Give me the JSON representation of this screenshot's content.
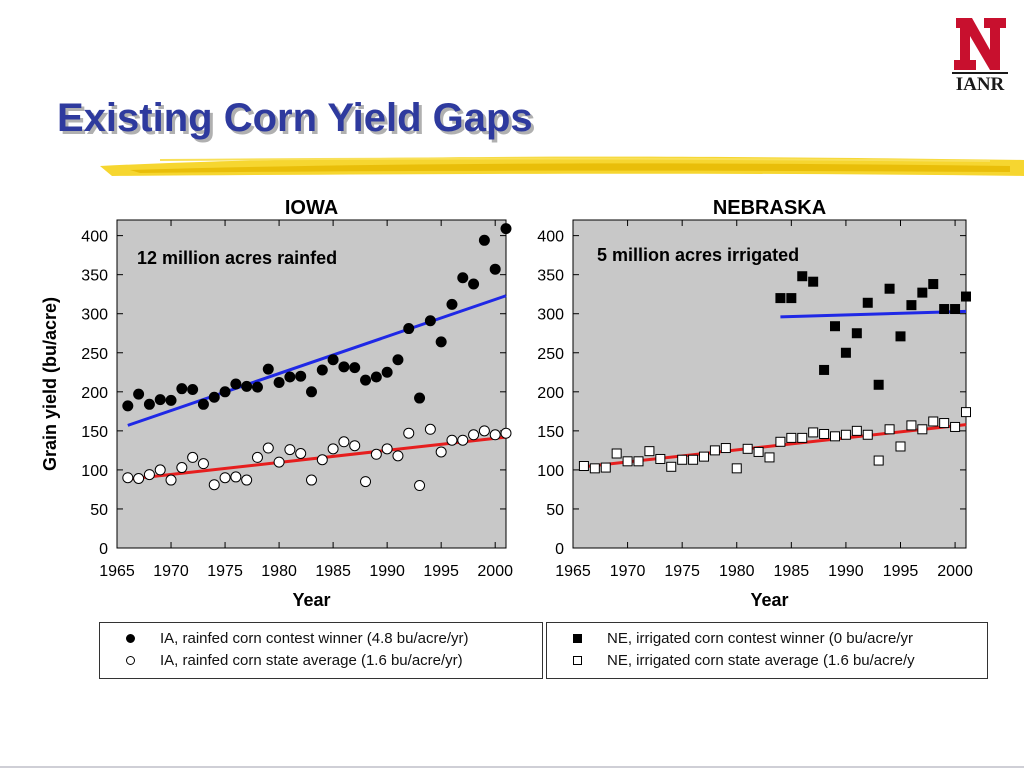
{
  "slide": {
    "title": "Existing Corn Yield Gaps",
    "logo_text": "IANR",
    "brand_color": "#c8102e",
    "title_color": "#2e3a9e",
    "swoosh_color": "#f2c800"
  },
  "chart_data": [
    {
      "type": "scatter",
      "title": "IOWA",
      "annotation": "12 million acres rainfed",
      "xlabel": "Year",
      "ylabel": "Grain yield (bu/acre)",
      "xlim": [
        1965,
        2001
      ],
      "ylim": [
        0,
        420
      ],
      "xticks": [
        1965,
        1970,
        1975,
        1980,
        1985,
        1990,
        1995,
        2000
      ],
      "yticks": [
        0,
        50,
        100,
        150,
        200,
        250,
        300,
        350,
        400
      ],
      "grid": false,
      "background": "#c8c8c8",
      "series": [
        {
          "name": "IA, rainfed corn contest winner (4.8 bu/acre/yr)",
          "marker": "filled-circle",
          "x": [
            1966,
            1967,
            1968,
            1969,
            1970,
            1971,
            1972,
            1973,
            1974,
            1975,
            1976,
            1977,
            1978,
            1979,
            1980,
            1981,
            1982,
            1983,
            1984,
            1985,
            1986,
            1987,
            1988,
            1989,
            1990,
            1991,
            1992,
            1993,
            1994,
            1995,
            1996,
            1997,
            1998,
            1999,
            2000,
            2001
          ],
          "y": [
            182,
            197,
            184,
            190,
            189,
            204,
            203,
            184,
            193,
            200,
            210,
            207,
            206,
            229,
            212,
            219,
            220,
            200,
            228,
            241,
            232,
            231,
            215,
            219,
            225,
            241,
            281,
            192,
            291,
            264,
            312,
            346,
            338,
            394,
            357,
            409
          ],
          "trend": {
            "color": "#1f28e6",
            "from": [
              1966,
              157
            ],
            "to": [
              2001,
              323
            ]
          }
        },
        {
          "name": "IA, rainfed corn state average (1.6 bu/acre/yr)",
          "marker": "open-circle",
          "x": [
            1966,
            1967,
            1968,
            1969,
            1970,
            1971,
            1972,
            1973,
            1974,
            1975,
            1976,
            1977,
            1978,
            1979,
            1980,
            1981,
            1982,
            1983,
            1984,
            1985,
            1986,
            1987,
            1988,
            1989,
            1990,
            1991,
            1992,
            1993,
            1994,
            1995,
            1996,
            1997,
            1998,
            1999,
            2000,
            2001
          ],
          "y": [
            90,
            89,
            94,
            100,
            87,
            103,
            116,
            108,
            81,
            90,
            91,
            87,
            116,
            128,
            110,
            126,
            121,
            87,
            113,
            127,
            136,
            131,
            85,
            120,
            127,
            118,
            147,
            80,
            152,
            123,
            138,
            138,
            145,
            150,
            145,
            147
          ],
          "trend": {
            "color": "#e61e1e",
            "from": [
              1966,
              88
            ],
            "to": [
              2001,
              142
            ]
          }
        }
      ]
    },
    {
      "type": "scatter",
      "title": "NEBRASKA",
      "annotation": "5 million acres irrigated",
      "xlabel": "Year",
      "ylabel": "",
      "xlim": [
        1965,
        2001
      ],
      "ylim": [
        0,
        420
      ],
      "xticks": [
        1965,
        1970,
        1975,
        1980,
        1985,
        1990,
        1995,
        2000
      ],
      "yticks": [
        0,
        50,
        100,
        150,
        200,
        250,
        300,
        350,
        400
      ],
      "grid": false,
      "background": "#c8c8c8",
      "series": [
        {
          "name": "NE, irrigated corn contest winner (0 bu/acre/yr",
          "marker": "filled-square",
          "x": [
            1984,
            1985,
            1986,
            1987,
            1988,
            1989,
            1990,
            1991,
            1992,
            1993,
            1994,
            1995,
            1996,
            1997,
            1998,
            1999,
            2000,
            2001
          ],
          "y": [
            320,
            320,
            348,
            341,
            228,
            284,
            250,
            275,
            314,
            209,
            332,
            271,
            311,
            327,
            338,
            306,
            306,
            322
          ],
          "trend": {
            "color": "#1f28e6",
            "from": [
              1984,
              296
            ],
            "to": [
              2001,
              303
            ]
          }
        },
        {
          "name": "NE, irrigated corn state average (1.6 bu/acre/y",
          "marker": "open-square",
          "x": [
            1966,
            1967,
            1968,
            1969,
            1970,
            1971,
            1972,
            1973,
            1974,
            1975,
            1976,
            1977,
            1978,
            1979,
            1980,
            1981,
            1982,
            1983,
            1984,
            1985,
            1986,
            1987,
            1988,
            1989,
            1990,
            1991,
            1992,
            1993,
            1994,
            1995,
            1996,
            1997,
            1998,
            1999,
            2000,
            2001
          ],
          "y": [
            105,
            102,
            103,
            121,
            111,
            111,
            124,
            114,
            104,
            113,
            113,
            117,
            125,
            128,
            102,
            127,
            123,
            116,
            136,
            141,
            141,
            148,
            146,
            143,
            145,
            150,
            145,
            112,
            152,
            130,
            157,
            152,
            162,
            160,
            155,
            174
          ],
          "trend": {
            "color": "#e61e1e",
            "from": [
              1966,
              104
            ],
            "to": [
              2001,
              158
            ]
          }
        }
      ]
    }
  ]
}
